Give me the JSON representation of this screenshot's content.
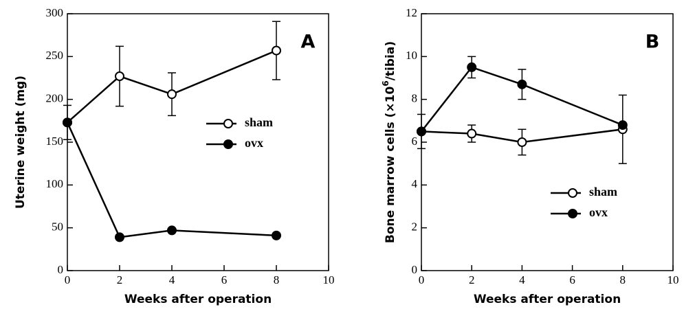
{
  "chart_data": [
    {
      "type": "line",
      "panel_label": "A",
      "x_label": "Weeks after operation",
      "y_label": "Uterine weight (mg)",
      "xlim": [
        0,
        10
      ],
      "xticks": [
        0,
        2,
        4,
        6,
        8,
        10
      ],
      "ylim": [
        0,
        300
      ],
      "yticks": [
        0,
        50,
        100,
        150,
        200,
        250,
        300
      ],
      "legend": "center right",
      "x": [
        0,
        2,
        4,
        8
      ],
      "series": [
        {
          "name": "sham",
          "color": "#000000",
          "marker_fill": "#ffffff",
          "values": [
            173,
            227,
            206,
            257
          ],
          "errors": [
            20,
            35,
            25,
            34
          ]
        },
        {
          "name": "ovx",
          "color": "#000000",
          "marker_fill": "#000000",
          "values": [
            173,
            39,
            47,
            41
          ],
          "errors": [
            null,
            null,
            null,
            null
          ]
        }
      ]
    },
    {
      "type": "line",
      "panel_label": "B",
      "x_label": "Weeks after operation",
      "y_label": [
        "Bone marrow cells (×10",
        "6",
        "/tibia)"
      ],
      "xlim": [
        0,
        10
      ],
      "xticks": [
        0,
        2,
        4,
        6,
        8,
        10
      ],
      "ylim": [
        0,
        12
      ],
      "yticks": [
        0,
        2,
        4,
        6,
        8,
        10,
        12
      ],
      "legend": "lower right",
      "x": [
        0,
        2,
        4,
        8
      ],
      "series": [
        {
          "name": "sham",
          "color": "#000000",
          "marker_fill": "#ffffff",
          "values": [
            6.5,
            6.4,
            6.0,
            6.6
          ],
          "errors": [
            0.8,
            0.4,
            0.6,
            1.6
          ]
        },
        {
          "name": "ovx",
          "color": "#000000",
          "marker_fill": "#000000",
          "values": [
            6.5,
            9.5,
            8.7,
            6.8
          ],
          "errors": [
            null,
            0.5,
            0.7,
            null
          ]
        }
      ]
    }
  ]
}
